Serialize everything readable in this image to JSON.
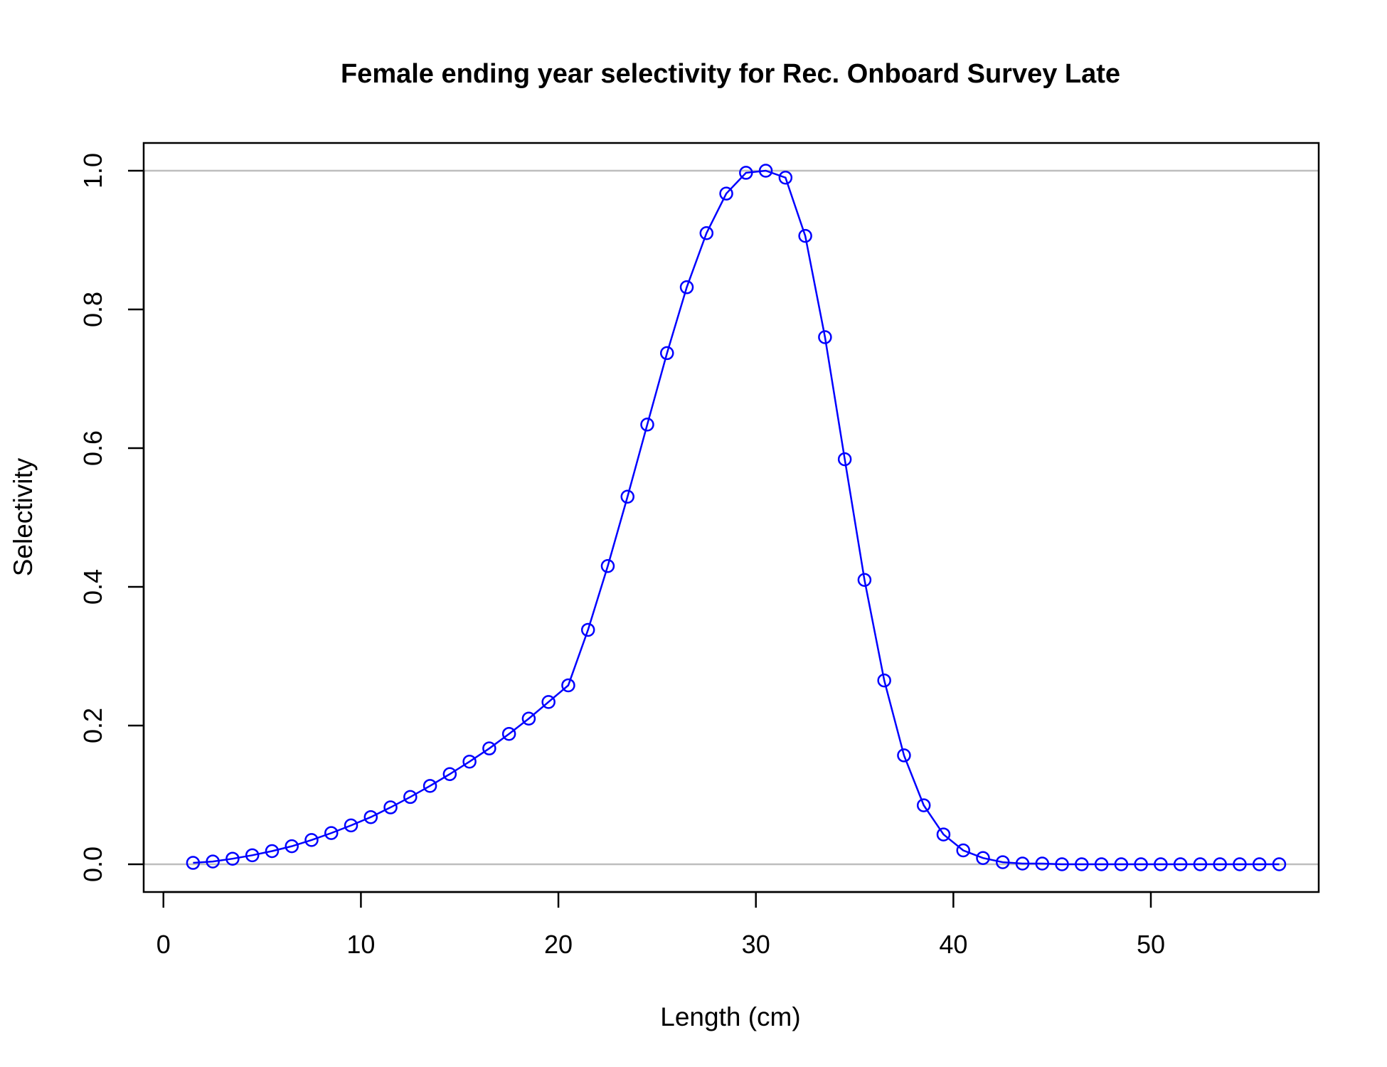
{
  "chart_data": {
    "type": "line",
    "title": "Female ending year selectivity for Rec. Onboard Survey Late",
    "xlabel": "Length (cm)",
    "ylabel": "Selectivity",
    "xlim": [
      -1,
      58.5
    ],
    "ylim": [
      -0.04,
      1.04
    ],
    "xticks": [
      0,
      10,
      20,
      30,
      40,
      50
    ],
    "yticks": [
      0.0,
      0.2,
      0.4,
      0.6,
      0.8,
      1.0
    ],
    "xtick_labels": [
      "0",
      "10",
      "20",
      "30",
      "40",
      "50"
    ],
    "ytick_labels": [
      "0.0",
      "0.2",
      "0.4",
      "0.6",
      "0.8",
      "1.0"
    ],
    "reference_lines": [
      0,
      1
    ],
    "reference_line_color": "#bebebe",
    "series": [
      {
        "color": "#0000ff",
        "marker": "open-circle",
        "x": [
          1.5,
          2.5,
          3.5,
          4.5,
          5.5,
          6.5,
          7.5,
          8.5,
          9.5,
          10.5,
          11.5,
          12.5,
          13.5,
          14.5,
          15.5,
          16.5,
          17.5,
          18.5,
          19.5,
          20.5,
          21.5,
          22.5,
          23.5,
          24.5,
          25.5,
          26.5,
          27.5,
          28.5,
          29.5,
          30.5,
          31.5,
          32.5,
          33.5,
          34.5,
          35.5,
          36.5,
          37.5,
          38.5,
          39.5,
          40.5,
          41.5,
          42.5,
          43.5,
          44.5,
          45.5,
          46.5,
          47.5,
          48.5,
          49.5,
          50.5,
          51.5,
          52.5,
          53.5,
          54.5,
          55.5,
          56.5
        ],
        "y": [
          0.002,
          0.004,
          0.008,
          0.013,
          0.019,
          0.026,
          0.035,
          0.045,
          0.056,
          0.068,
          0.082,
          0.097,
          0.113,
          0.13,
          0.148,
          0.167,
          0.188,
          0.21,
          0.234,
          0.258,
          0.338,
          0.43,
          0.53,
          0.634,
          0.737,
          0.832,
          0.91,
          0.967,
          0.997,
          1.0,
          0.99,
          0.906,
          0.76,
          0.584,
          0.41,
          0.265,
          0.157,
          0.085,
          0.043,
          0.02,
          0.009,
          0.003,
          0.001,
          0.001,
          0.0,
          0.0,
          0.0,
          0.0,
          0.0,
          0.0,
          0.0,
          0.0,
          0.0,
          0.0,
          0.0,
          0.0
        ]
      }
    ]
  }
}
